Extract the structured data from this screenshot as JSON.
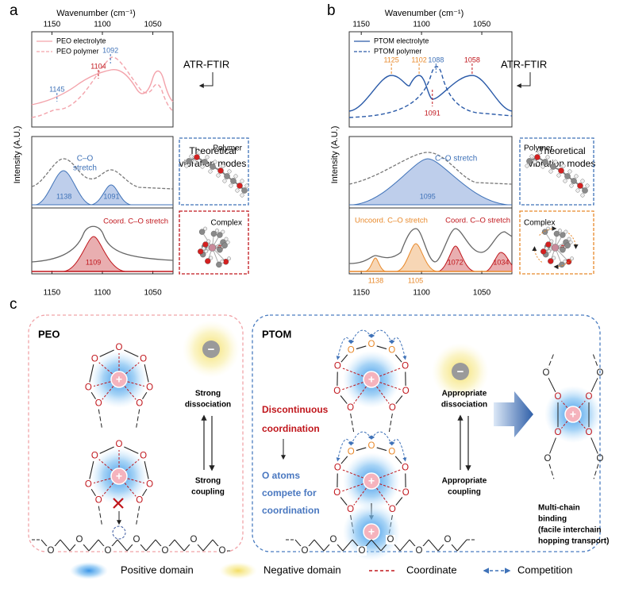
{
  "panel_a": {
    "label": "a",
    "axis_title": "Wavenumber (cm⁻¹)",
    "y_label": "Intensity (A.U.)",
    "xlim": [
      1170,
      1030
    ],
    "xticks": [
      1150,
      1100,
      1050
    ],
    "legend": [
      "PEO electrolyte",
      "PEO polymer"
    ],
    "method": "ATR-FTIR",
    "theory_title": [
      "Theoretical",
      "vibration modes"
    ],
    "top_peaks": [
      1145,
      1104,
      1092
    ],
    "mid_label": [
      "C–O",
      "stretch"
    ],
    "mid_peaks": [
      1138,
      1091
    ],
    "bottom_label": [
      "Coord. C–O stretch"
    ],
    "bottom_peaks": [
      1109
    ],
    "modes": [
      "Polymer",
      "Complex"
    ]
  },
  "panel_b": {
    "label": "b",
    "axis_title": "Wavenumber (cm⁻¹)",
    "y_label": "Intensity (A.U.)",
    "xlim": [
      1160,
      1025
    ],
    "xticks": [
      1150,
      1100,
      1050
    ],
    "legend": [
      "PTOM electrolyte",
      "PTOM polymer"
    ],
    "method": "ATR-FTIR",
    "theory_title": [
      "Theoretical",
      "vibration modes"
    ],
    "top_peaks": [
      1125,
      1102,
      1088,
      1058,
      1091
    ],
    "mid_label": [
      "C–O stretch"
    ],
    "mid_peaks": [
      1095
    ],
    "bottom_label": [
      "Uncoord. C–O stretch",
      "Coord. C–O stretch"
    ],
    "bottom_peaks": [
      1138,
      1105,
      1072,
      1034
    ],
    "modes": [
      "Polymer",
      "Complex"
    ]
  },
  "panel_c": {
    "label": "c",
    "atom": "O",
    "cation": "+",
    "anion": "−",
    "peo": {
      "title": "PEO",
      "dissociation": [
        "Strong",
        "dissociation"
      ],
      "coupling": [
        "Strong",
        "coupling"
      ]
    },
    "ptom": {
      "title": "PTOM",
      "discontinuous": [
        "Discontinuous",
        "coordination"
      ],
      "compete": [
        "O atoms",
        "compete for",
        "coordination"
      ],
      "dissociation": [
        "Appropriate",
        "dissociation"
      ],
      "coupling": [
        "Appropriate",
        "coupling"
      ],
      "multichain": [
        "Multi-chain",
        "binding",
        "(facile interchain",
        "hopping transport)"
      ]
    },
    "legend": [
      "Positive domain",
      "Negative domain",
      "Coordinate",
      "Competition"
    ]
  }
}
